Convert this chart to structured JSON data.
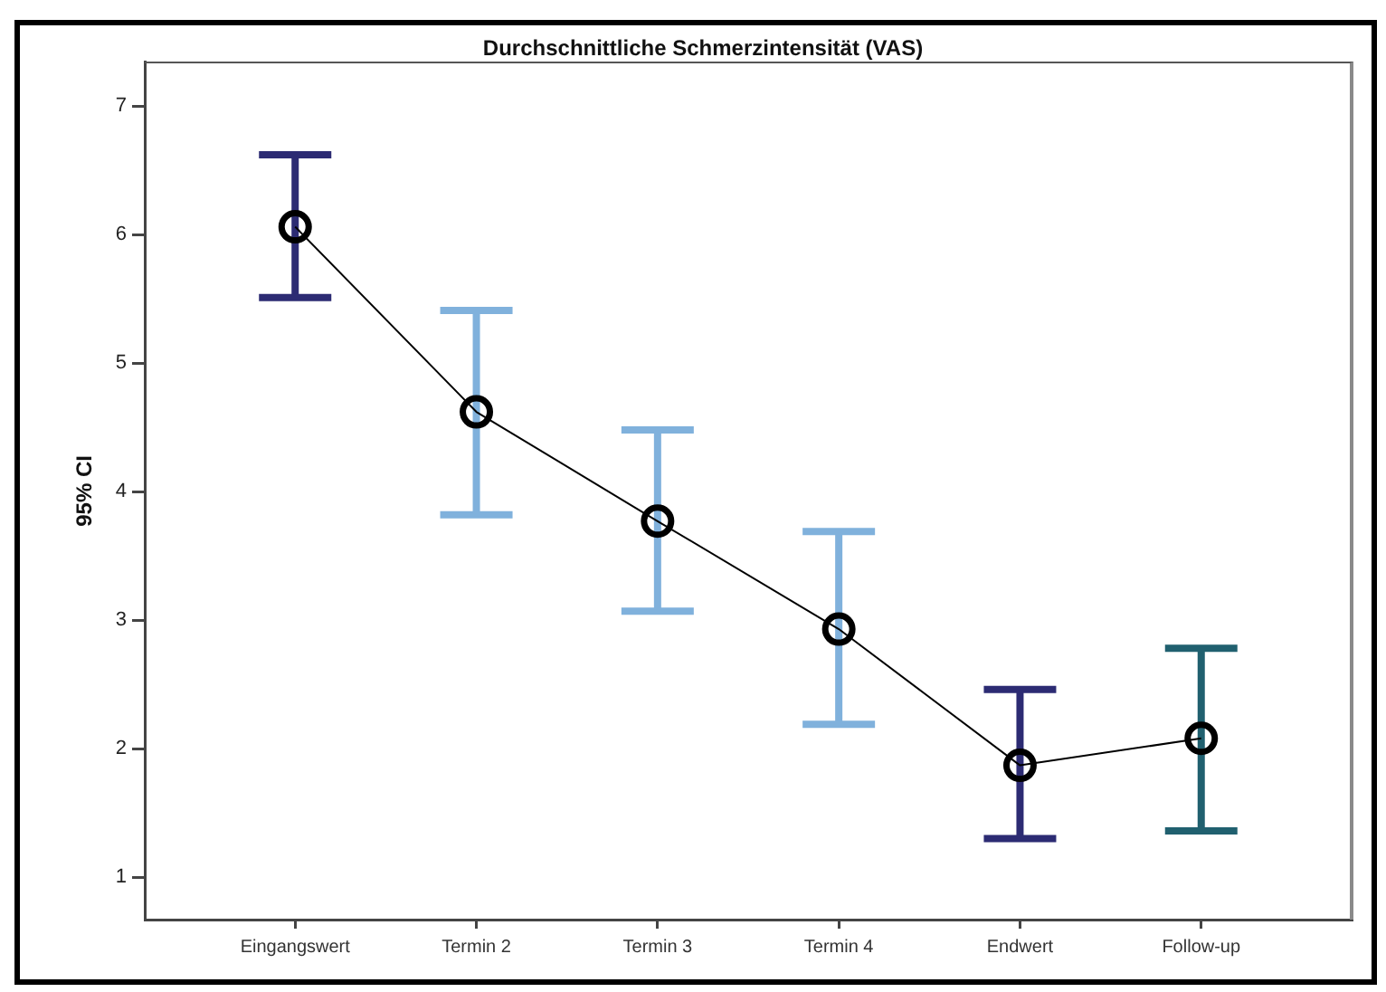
{
  "chart_data": {
    "type": "line",
    "title": "Durchschnittliche Schmerzintensität (VAS)",
    "ylabel": "95% CI",
    "categories": [
      "Eingangswert",
      "Termin 2",
      "Termin 3",
      "Termin 4",
      "Endwert",
      "Follow-up"
    ],
    "series": [
      {
        "color": "#000000",
        "colors": [
          "#2c2b73",
          "#80b1dc",
          "#80b1dc",
          "#80b1dc",
          "#2c2b73",
          "#20606f"
        ],
        "values": [
          6.06,
          4.62,
          3.77,
          2.93,
          1.87,
          2.08
        ],
        "errors": [
          [
            5.51,
            6.62
          ],
          [
            3.82,
            5.41
          ],
          [
            3.07,
            4.48
          ],
          [
            2.19,
            3.69
          ],
          [
            1.3,
            2.46
          ],
          [
            1.36,
            2.78
          ]
        ]
      }
    ],
    "ylim": [
      0.67,
      7.34
    ],
    "yticks": [
      1,
      2,
      3,
      4,
      5,
      6,
      7
    ],
    "marker": "circle",
    "line_style": "solid"
  }
}
